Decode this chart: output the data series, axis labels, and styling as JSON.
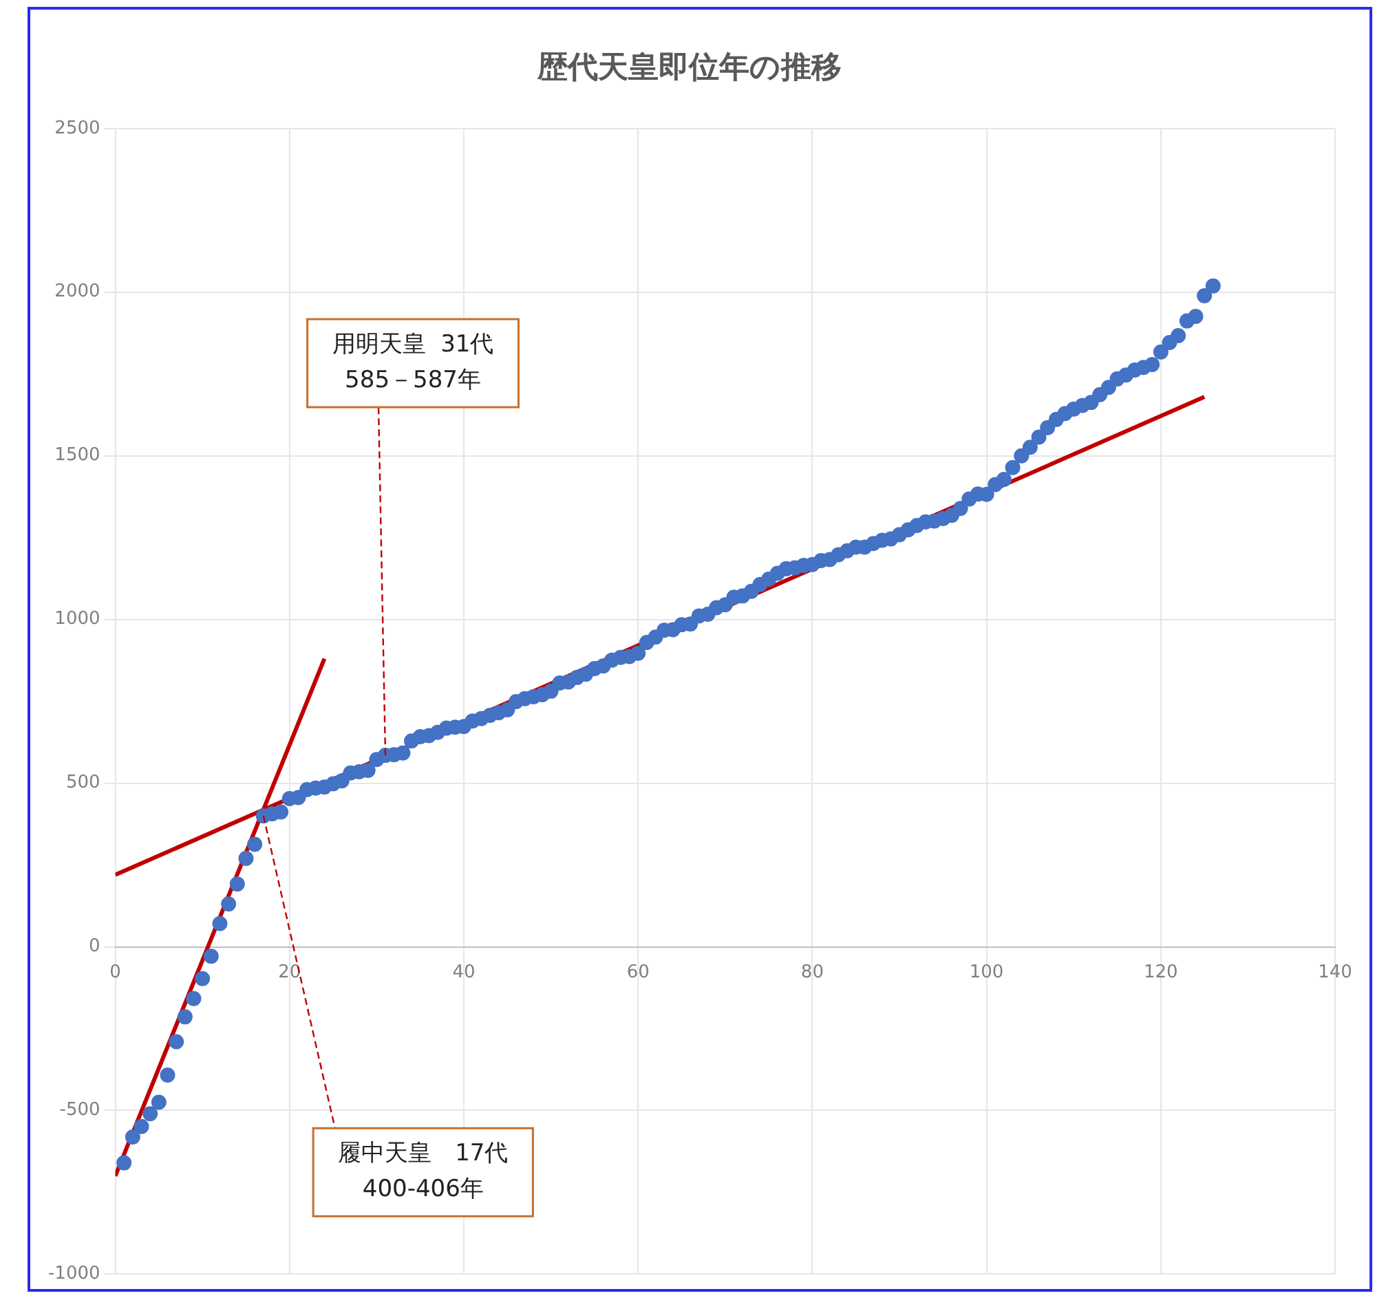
{
  "chart_data": {
    "type": "scatter",
    "title": "歴代天皇即位年の推移",
    "xlim": [
      0,
      140
    ],
    "xticks": [
      0,
      20,
      40,
      60,
      80,
      100,
      120,
      140
    ],
    "ylim": [
      -1000,
      2500
    ],
    "yticks": [
      -1000,
      -500,
      0,
      500,
      1000,
      1500,
      2000,
      2500
    ],
    "grid": true,
    "legend": false,
    "marker": "circle",
    "series": [
      {
        "type": "scatter",
        "color": "#4472c4",
        "x": [
          1,
          2,
          3,
          4,
          5,
          6,
          7,
          8,
          9,
          10,
          11,
          12,
          13,
          14,
          15,
          16,
          17,
          18,
          19,
          20,
          21,
          22,
          23,
          24,
          25,
          26,
          27,
          28,
          29,
          30,
          31,
          32,
          33,
          34,
          35,
          36,
          37,
          38,
          39,
          40,
          41,
          42,
          43,
          44,
          45,
          46,
          47,
          48,
          49,
          50,
          51,
          52,
          53,
          54,
          55,
          56,
          57,
          58,
          59,
          60,
          61,
          62,
          63,
          64,
          65,
          66,
          67,
          68,
          69,
          70,
          71,
          72,
          73,
          74,
          75,
          76,
          77,
          78,
          79,
          80,
          81,
          82,
          83,
          84,
          85,
          86,
          87,
          88,
          89,
          90,
          91,
          92,
          93,
          94,
          95,
          96,
          97,
          98,
          99,
          100,
          101,
          102,
          103,
          104,
          105,
          106,
          107,
          108,
          109,
          110,
          111,
          112,
          113,
          114,
          115,
          116,
          117,
          118,
          119,
          120,
          121,
          122,
          123,
          124,
          125,
          126
        ],
        "values": [
          -660,
          -581,
          -549,
          -510,
          -475,
          -392,
          -290,
          -214,
          -158,
          -97,
          -29,
          71,
          131,
          192,
          270,
          313,
          400,
          406,
          412,
          453,
          456,
          480,
          485,
          488,
          498,
          507,
          531,
          535,
          539,
          572,
          585,
          587,
          592,
          629,
          642,
          645,
          655,
          668,
          671,
          673,
          690,
          697,
          707,
          715,
          724,
          749,
          758,
          764,
          770,
          781,
          806,
          809,
          823,
          833,
          850,
          858,
          876,
          884,
          887,
          897,
          930,
          946,
          967,
          969,
          984,
          986,
          1011,
          1016,
          1036,
          1045,
          1068,
          1072,
          1086,
          1107,
          1123,
          1141,
          1155,
          1158,
          1165,
          1168,
          1180,
          1183,
          1198,
          1210,
          1221,
          1221,
          1232,
          1242,
          1246,
          1259,
          1274,
          1287,
          1298,
          1301,
          1308,
          1318,
          1339,
          1368,
          1383,
          1382,
          1412,
          1428,
          1464,
          1500,
          1526,
          1557,
          1586,
          1611,
          1629,
          1643,
          1654,
          1663,
          1687,
          1709,
          1735,
          1747,
          1762,
          1770,
          1779,
          1817,
          1846,
          1867,
          1912,
          1926,
          1989,
          2019
        ]
      },
      {
        "type": "line",
        "color": "#c00000",
        "marker": "none",
        "x": [
          0,
          24
        ],
        "values": [
          -700,
          880
        ]
      },
      {
        "type": "line",
        "color": "#c00000",
        "marker": "none",
        "x": [
          0,
          125
        ],
        "values": [
          220,
          1680
        ]
      }
    ],
    "annotations": [
      {
        "text": "用明天皇  31代\n585－587年",
        "x": 31,
        "y": 585
      },
      {
        "text": "履中天皇　17代\n400-406年",
        "x": 17,
        "y": 400
      }
    ]
  }
}
